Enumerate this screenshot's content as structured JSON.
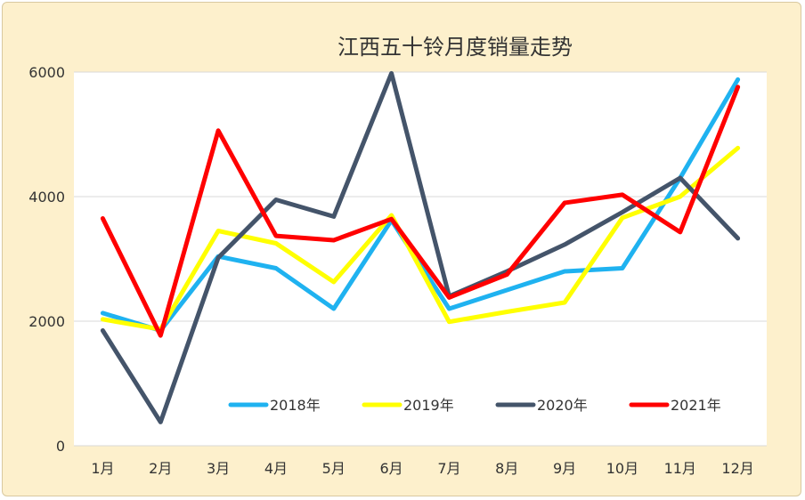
{
  "chart_data": {
    "type": "line",
    "title": "江西五十铃月度销量走势",
    "xlabel": "",
    "ylabel": "",
    "categories": [
      "1月",
      "2月",
      "3月",
      "4月",
      "5月",
      "6月",
      "7月",
      "8月",
      "9月",
      "10月",
      "11月",
      "12月"
    ],
    "ylim": [
      0,
      6000
    ],
    "yticks": [
      "0",
      "2000",
      "4000",
      "6000"
    ],
    "grid": true,
    "legend_position": "bottom-inside",
    "series": [
      {
        "name": "2018年",
        "color": "#1fb2f0",
        "values": [
          2130,
          1850,
          3040,
          2850,
          2200,
          3620,
          2200,
          2500,
          2800,
          2850,
          4300,
          5880
        ]
      },
      {
        "name": "2019年",
        "color": "#ffff00",
        "values": [
          2030,
          1870,
          3450,
          3250,
          2630,
          3700,
          1990,
          2150,
          2300,
          3660,
          4000,
          4780
        ]
      },
      {
        "name": "2020年",
        "color": "#44546a",
        "values": [
          1850,
          380,
          3020,
          3950,
          3680,
          5980,
          2400,
          2800,
          3230,
          3750,
          4300,
          3330
        ]
      },
      {
        "name": "2021年",
        "color": "#ff0000",
        "values": [
          3650,
          1770,
          5060,
          3370,
          3300,
          3640,
          2380,
          2750,
          3900,
          4030,
          3430,
          5760
        ]
      }
    ]
  }
}
